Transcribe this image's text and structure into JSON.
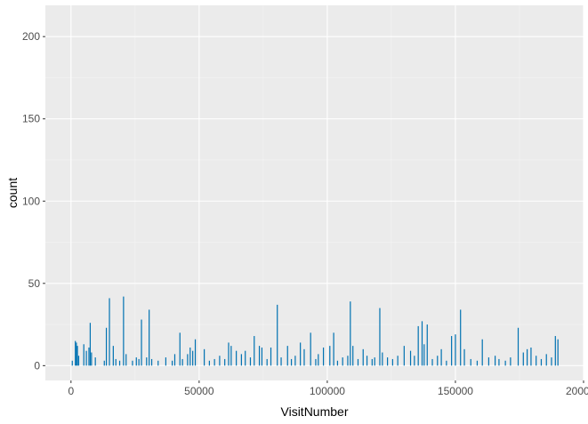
{
  "chart_data": {
    "type": "bar",
    "title": "",
    "xlabel": "VisitNumber",
    "ylabel": "count",
    "xlim": [
      -10000,
      200000
    ],
    "ylim": [
      -9,
      219
    ],
    "x_ticks": [
      0,
      50000,
      100000,
      150000,
      200000
    ],
    "x_tick_labels": [
      "0",
      "50000",
      "100000",
      "150000",
      "200000"
    ],
    "y_ticks": [
      0,
      50,
      100,
      150,
      200
    ],
    "y_tick_labels": [
      "0",
      "50",
      "100",
      "150",
      "200"
    ],
    "grid": true,
    "legend": "none",
    "colors": {
      "bar": "#0072B2",
      "panel": "#EBEBEB",
      "grid_major": "#FFFFFF",
      "grid_minor": "#F4F4F4"
    },
    "x": [
      500,
      1700,
      2100,
      2500,
      3000,
      5000,
      6000,
      7000,
      7500,
      8000,
      9500,
      13000,
      13800,
      15000,
      16500,
      17500,
      19000,
      20500,
      21500,
      24000,
      25500,
      26500,
      27500,
      29500,
      30500,
      31500,
      34000,
      37000,
      39500,
      40500,
      42500,
      43500,
      45500,
      46500,
      47500,
      48500,
      52000,
      54000,
      56000,
      58000,
      60000,
      61500,
      62500,
      64500,
      66500,
      68000,
      70000,
      71500,
      73500,
      74500,
      76500,
      78000,
      80500,
      82000,
      84500,
      86000,
      87500,
      89500,
      91000,
      93500,
      95500,
      96500,
      98500,
      101000,
      102500,
      104000,
      106000,
      108000,
      109000,
      110000,
      112000,
      114000,
      115500,
      117500,
      118500,
      120500,
      121500,
      123500,
      125500,
      127500,
      130000,
      132500,
      134000,
      135500,
      137000,
      137800,
      139000,
      141000,
      143000,
      144500,
      146500,
      148500,
      150000,
      152000,
      153500,
      156000,
      158500,
      160500,
      163000,
      165500,
      167000,
      169500,
      171500,
      174500,
      176500,
      178000,
      179500,
      181500,
      183500,
      185500,
      187500,
      189000,
      190000
    ],
    "counts": [
      3,
      15,
      14,
      12,
      6,
      13,
      9,
      11,
      26,
      8,
      5,
      3,
      23,
      41,
      12,
      4,
      3,
      42,
      7,
      3,
      5,
      4,
      28,
      5,
      34,
      4,
      3,
      5,
      3,
      7,
      20,
      4,
      7,
      11,
      9,
      16,
      10,
      3,
      4,
      6,
      4,
      14,
      12,
      9,
      7,
      9,
      5,
      18,
      12,
      11,
      4,
      11,
      37,
      5,
      12,
      4,
      6,
      14,
      10,
      20,
      4,
      7,
      11,
      12,
      20,
      3,
      5,
      6,
      39,
      12,
      4,
      10,
      6,
      4,
      5,
      35,
      8,
      5,
      4,
      6,
      12,
      9,
      6,
      24,
      27,
      13,
      25,
      4,
      6,
      10,
      3,
      18,
      19,
      34,
      10,
      4,
      3,
      16,
      5,
      6,
      4,
      3,
      5,
      23,
      8,
      10,
      11,
      6,
      4,
      7,
      5,
      18,
      16
    ]
  }
}
